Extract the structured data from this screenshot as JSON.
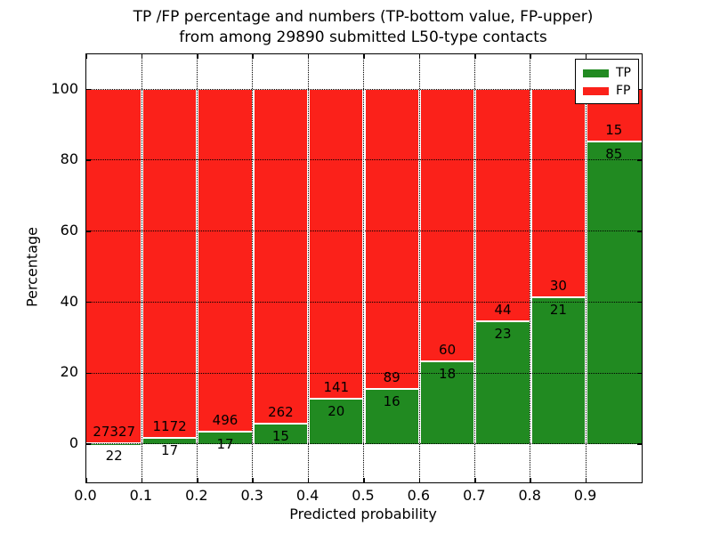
{
  "chart_data": {
    "type": "bar",
    "stacked": true,
    "normalized_to_percent": true,
    "title_line1": "TP /FP percentage and numbers (TP-bottom value, FP-upper)",
    "title_line2": "from among 29890 submitted L50-type contacts",
    "title": "TP /FP percentage and numbers (TP-bottom value, FP-upper) from among 29890 submitted L50-type contacts",
    "xlabel": "Predicted probability",
    "ylabel": "Percentage",
    "xlim": [
      0.0,
      1.0
    ],
    "ylim": [
      -11,
      110
    ],
    "x_tick_labels": [
      "0.0",
      "0.1",
      "0.2",
      "0.3",
      "0.4",
      "0.5",
      "0.6",
      "0.7",
      "0.8",
      "0.9"
    ],
    "y_tick_values": [
      0,
      20,
      40,
      60,
      80,
      100
    ],
    "grid": "black dotted, drawn above bars",
    "legend_position": "upper right",
    "bin_width": 0.1,
    "categories": [
      "0.0",
      "0.1",
      "0.2",
      "0.3",
      "0.4",
      "0.5",
      "0.6",
      "0.7",
      "0.8",
      "0.9"
    ],
    "series": [
      {
        "name": "TP",
        "color": "#218a21",
        "counts": [
          22,
          17,
          17,
          15,
          20,
          16,
          18,
          23,
          21,
          85
        ]
      },
      {
        "name": "FP",
        "color": "#fb211a",
        "counts": [
          27327,
          1172,
          496,
          262,
          141,
          89,
          60,
          44,
          30,
          15
        ]
      }
    ],
    "bins": [
      {
        "x_start": "0.0",
        "tp": 22,
        "fp": 27327
      },
      {
        "x_start": "0.1",
        "tp": 17,
        "fp": 1172
      },
      {
        "x_start": "0.2",
        "tp": 17,
        "fp": 496
      },
      {
        "x_start": "0.3",
        "tp": 15,
        "fp": 262
      },
      {
        "x_start": "0.4",
        "tp": 20,
        "fp": 141
      },
      {
        "x_start": "0.5",
        "tp": 16,
        "fp": 89
      },
      {
        "x_start": "0.6",
        "tp": 18,
        "fp": 60
      },
      {
        "x_start": "0.7",
        "tp": 23,
        "fp": 44
      },
      {
        "x_start": "0.8",
        "tp": 21,
        "fp": 30
      },
      {
        "x_start": "0.9",
        "tp": 85,
        "fp": 15
      }
    ],
    "legend": [
      {
        "label": "TP",
        "color": "#218a21"
      },
      {
        "label": "FP",
        "color": "#fb211a"
      }
    ]
  }
}
